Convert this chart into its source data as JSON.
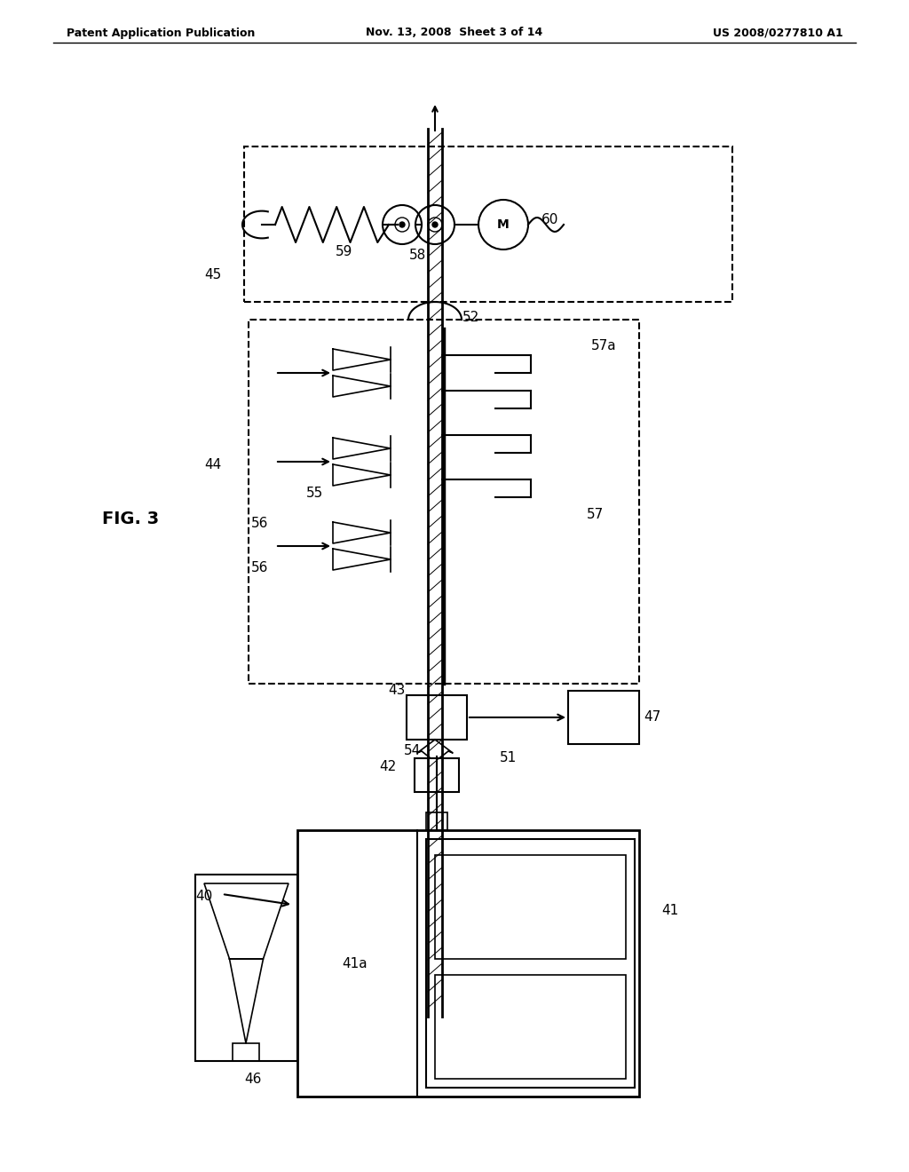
{
  "header_left": "Patent Application Publication",
  "header_center": "Nov. 13, 2008  Sheet 3 of 14",
  "header_right": "US 2008/0277810 A1",
  "bg_color": "#ffffff",
  "line_color": "#000000"
}
